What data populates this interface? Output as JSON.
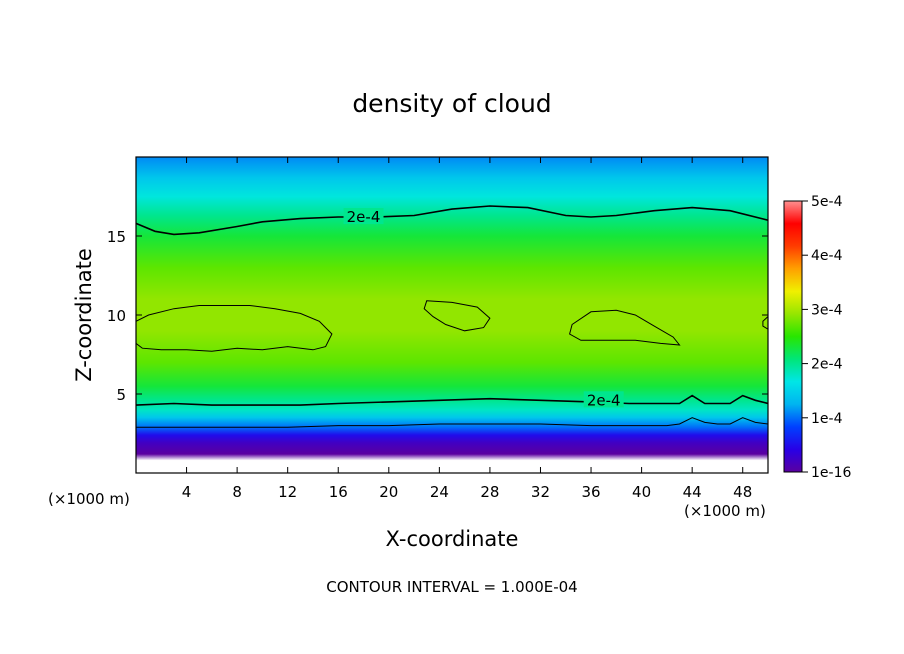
{
  "chart_data": {
    "type": "heatmap",
    "title": "density of cloud",
    "xlabel": "X-coordinate",
    "ylabel": "Z-coordinate",
    "x_unit": "(×1000 m)",
    "z_unit": "(×1000 m)",
    "xlim": [
      0,
      50
    ],
    "ylim": [
      0,
      20
    ],
    "x_ticks": [
      "4",
      "8",
      "12",
      "16",
      "20",
      "24",
      "28",
      "32",
      "36",
      "40",
      "44",
      "48"
    ],
    "y_ticks": [
      "5",
      "10",
      "15"
    ],
    "colorbar": {
      "ticks": [
        "1e-16",
        "1e-4",
        "2e-4",
        "3e-4",
        "4e-4",
        "5e-4"
      ],
      "range": [
        0,
        0.0005
      ],
      "colors": [
        "#5a00a0",
        "#2800e6",
        "#0040ff",
        "#00b4f0",
        "#00e6e6",
        "#00e678",
        "#28e600",
        "#96e600",
        "#f0f000",
        "#ffa000",
        "#ff3c00",
        "#ff0000",
        "#ff9090"
      ]
    },
    "contour_labels": [
      {
        "text": "2e-4",
        "x": 18,
        "z": 16.2
      },
      {
        "text": "2e-4",
        "x": 37,
        "z": 4.6
      }
    ],
    "contours": [
      {
        "level": 0.0002,
        "points": [
          [
            0,
            15.8
          ],
          [
            1.5,
            15.3
          ],
          [
            3,
            15.1
          ],
          [
            5,
            15.2
          ],
          [
            8,
            15.6
          ],
          [
            10,
            15.9
          ],
          [
            13,
            16.1
          ],
          [
            16,
            16.2
          ],
          [
            19,
            16.2
          ],
          [
            22,
            16.3
          ],
          [
            25,
            16.7
          ],
          [
            28,
            16.9
          ],
          [
            31,
            16.8
          ],
          [
            34,
            16.3
          ],
          [
            36,
            16.2
          ],
          [
            38,
            16.3
          ],
          [
            41,
            16.6
          ],
          [
            44,
            16.8
          ],
          [
            47,
            16.6
          ],
          [
            50,
            16.0
          ]
        ]
      },
      {
        "level": 0.0002,
        "points": [
          [
            0,
            4.3
          ],
          [
            3,
            4.4
          ],
          [
            6,
            4.3
          ],
          [
            10,
            4.3
          ],
          [
            13,
            4.3
          ],
          [
            16,
            4.4
          ],
          [
            20,
            4.5
          ],
          [
            24,
            4.6
          ],
          [
            28,
            4.7
          ],
          [
            32,
            4.6
          ],
          [
            36,
            4.5
          ],
          [
            39,
            4.4
          ],
          [
            41,
            4.4
          ],
          [
            43,
            4.4
          ],
          [
            44,
            4.9
          ],
          [
            45,
            4.4
          ],
          [
            47,
            4.4
          ],
          [
            48,
            4.9
          ],
          [
            49,
            4.6
          ],
          [
            50,
            4.4
          ]
        ]
      },
      {
        "level": 0.0001,
        "points": [
          [
            0,
            2.9
          ],
          [
            4,
            2.9
          ],
          [
            8,
            2.9
          ],
          [
            12,
            2.9
          ],
          [
            16,
            3.0
          ],
          [
            20,
            3.0
          ],
          [
            24,
            3.1
          ],
          [
            28,
            3.1
          ],
          [
            32,
            3.1
          ],
          [
            36,
            3.0
          ],
          [
            40,
            3.0
          ],
          [
            42,
            3.0
          ],
          [
            43,
            3.1
          ],
          [
            44,
            3.5
          ],
          [
            45,
            3.2
          ],
          [
            46,
            3.1
          ],
          [
            47,
            3.1
          ],
          [
            48,
            3.5
          ],
          [
            49,
            3.2
          ],
          [
            50,
            3.1
          ]
        ]
      },
      {
        "level": 0.0003,
        "closed": true,
        "points": [
          [
            0,
            9.6
          ],
          [
            1,
            10
          ],
          [
            3,
            10.4
          ],
          [
            5,
            10.6
          ],
          [
            7,
            10.6
          ],
          [
            9,
            10.6
          ],
          [
            11,
            10.4
          ],
          [
            13,
            10.1
          ],
          [
            14.5,
            9.6
          ],
          [
            15.5,
            8.8
          ],
          [
            15,
            8
          ],
          [
            14,
            7.8
          ],
          [
            12,
            8.0
          ],
          [
            10,
            7.8
          ],
          [
            8,
            7.9
          ],
          [
            6,
            7.7
          ],
          [
            4,
            7.8
          ],
          [
            2,
            7.8
          ],
          [
            0.5,
            7.9
          ],
          [
            0,
            8.2
          ]
        ]
      },
      {
        "level": 0.0003,
        "closed": true,
        "points": [
          [
            23,
            10.9
          ],
          [
            25,
            10.8
          ],
          [
            27,
            10.5
          ],
          [
            28,
            9.8
          ],
          [
            27.5,
            9.2
          ],
          [
            26,
            9.0
          ],
          [
            24.5,
            9.4
          ],
          [
            23.5,
            9.9
          ],
          [
            22.8,
            10.4
          ]
        ]
      },
      {
        "level": 0.0003,
        "closed": true,
        "points": [
          [
            34.5,
            9.4
          ],
          [
            36,
            10.2
          ],
          [
            38,
            10.3
          ],
          [
            39.5,
            10.0
          ],
          [
            41,
            9.3
          ],
          [
            42.5,
            8.6
          ],
          [
            43,
            8.1
          ],
          [
            41.5,
            8.2
          ],
          [
            39.5,
            8.4
          ],
          [
            37,
            8.4
          ],
          [
            35.2,
            8.4
          ],
          [
            34.3,
            8.8
          ]
        ]
      },
      {
        "level": 0.0003,
        "closed": true,
        "points": [
          [
            49.6,
            9.6
          ],
          [
            50,
            9.9
          ],
          [
            50,
            9.1
          ],
          [
            49.6,
            9.3
          ]
        ]
      }
    ],
    "field_profile": [
      {
        "z": 0.0,
        "value": null
      },
      {
        "z": 0.8,
        "value": null
      },
      {
        "z": 1.2,
        "value": 0.0
      },
      {
        "z": 1.9,
        "value": 2e-05
      },
      {
        "z": 2.4,
        "value": 5e-05
      },
      {
        "z": 2.9,
        "value": 0.0001
      },
      {
        "z": 3.5,
        "value": 0.00014
      },
      {
        "z": 4.0,
        "value": 0.00018
      },
      {
        "z": 4.6,
        "value": 0.0002
      },
      {
        "z": 5.5,
        "value": 0.00023
      },
      {
        "z": 7.0,
        "value": 0.00027
      },
      {
        "z": 9.0,
        "value": 0.00029
      },
      {
        "z": 11.0,
        "value": 0.00029
      },
      {
        "z": 13.0,
        "value": 0.00027
      },
      {
        "z": 15.0,
        "value": 0.00023
      },
      {
        "z": 16.3,
        "value": 0.0002
      },
      {
        "z": 17.5,
        "value": 0.00017
      },
      {
        "z": 18.7,
        "value": 0.00014
      },
      {
        "z": 20.0,
        "value": 0.00011
      }
    ],
    "footer": "CONTOUR INTERVAL = 1.000E-04"
  }
}
